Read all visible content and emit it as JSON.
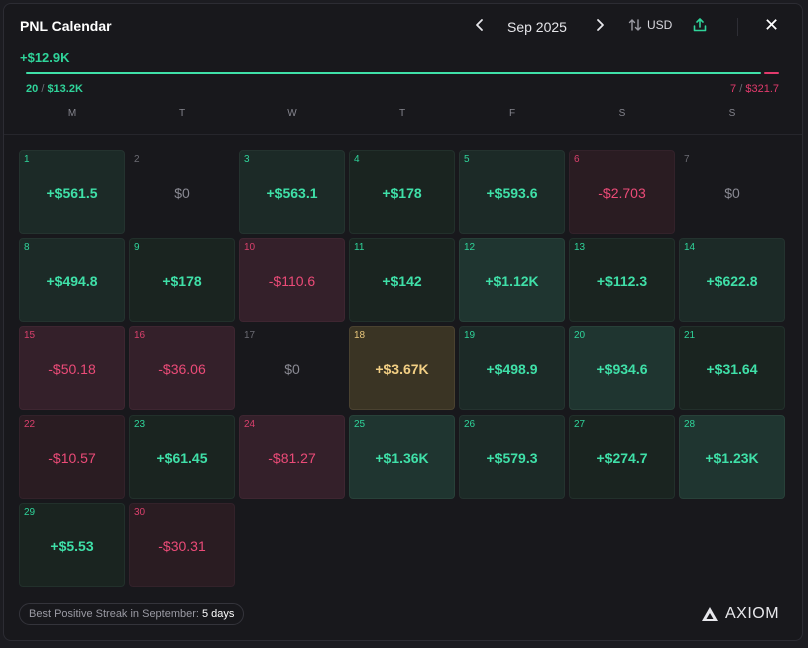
{
  "header": {
    "title": "PNL Calendar",
    "prev_icon": "chevron-left-icon",
    "next_icon": "chevron-right-icon",
    "month_label": "Sep 2025",
    "currency_label": "USD",
    "currency_icon": "sort-arrows-icon",
    "share_icon": "upload-icon",
    "close_label": "✕"
  },
  "summary": {
    "total": "+$12.9K",
    "positive_days": "20",
    "positive_amount": "$13.2K",
    "negative_days": "7",
    "negative_amount": "$321.7",
    "positive_share": 0.976,
    "separator": "/",
    "positive_color": "#3fe0a8",
    "negative_color": "#e23a6c"
  },
  "weekdays": [
    "M",
    "T",
    "W",
    "T",
    "F",
    "S",
    "S"
  ],
  "days": [
    {
      "day": "1",
      "value": "+$561.5",
      "tone": "pos1"
    },
    {
      "day": "2",
      "value": "$0",
      "tone": "zero"
    },
    {
      "day": "3",
      "value": "+$563.1",
      "tone": "pos1"
    },
    {
      "day": "4",
      "value": "+$178",
      "tone": "pos0"
    },
    {
      "day": "5",
      "value": "+$593.6",
      "tone": "pos1"
    },
    {
      "day": "6",
      "value": "-$2.703",
      "tone": "neg1"
    },
    {
      "day": "7",
      "value": "$0",
      "tone": "zero"
    },
    {
      "day": "8",
      "value": "+$494.8",
      "tone": "pos1"
    },
    {
      "day": "9",
      "value": "+$178",
      "tone": "pos0"
    },
    {
      "day": "10",
      "value": "-$110.6",
      "tone": "neg2"
    },
    {
      "day": "11",
      "value": "+$142",
      "tone": "pos0"
    },
    {
      "day": "12",
      "value": "+$1.12K",
      "tone": "pos2"
    },
    {
      "day": "13",
      "value": "+$112.3",
      "tone": "pos0"
    },
    {
      "day": "14",
      "value": "+$622.8",
      "tone": "pos1"
    },
    {
      "day": "15",
      "value": "-$50.18",
      "tone": "neg2"
    },
    {
      "day": "16",
      "value": "-$36.06",
      "tone": "neg2"
    },
    {
      "day": "17",
      "value": "$0",
      "tone": "zero"
    },
    {
      "day": "18",
      "value": "+$3.67K",
      "tone": "gold"
    },
    {
      "day": "19",
      "value": "+$498.9",
      "tone": "pos1"
    },
    {
      "day": "20",
      "value": "+$934.6",
      "tone": "pos2"
    },
    {
      "day": "21",
      "value": "+$31.64",
      "tone": "pos0"
    },
    {
      "day": "22",
      "value": "-$10.57",
      "tone": "neg1"
    },
    {
      "day": "23",
      "value": "+$61.45",
      "tone": "pos0"
    },
    {
      "day": "24",
      "value": "-$81.27",
      "tone": "neg2"
    },
    {
      "day": "25",
      "value": "+$1.36K",
      "tone": "pos2"
    },
    {
      "day": "26",
      "value": "+$579.3",
      "tone": "pos1"
    },
    {
      "day": "27",
      "value": "+$274.7",
      "tone": "pos0"
    },
    {
      "day": "28",
      "value": "+$1.23K",
      "tone": "pos2"
    },
    {
      "day": "29",
      "value": "+$5.53",
      "tone": "pos0"
    },
    {
      "day": "30",
      "value": "-$30.31",
      "tone": "neg1"
    }
  ],
  "footer": {
    "streak_label": "Best Positive Streak in September:",
    "streak_value": "5 days",
    "brand": "AXIOM",
    "brand_icon": "axiom-logo-icon"
  }
}
